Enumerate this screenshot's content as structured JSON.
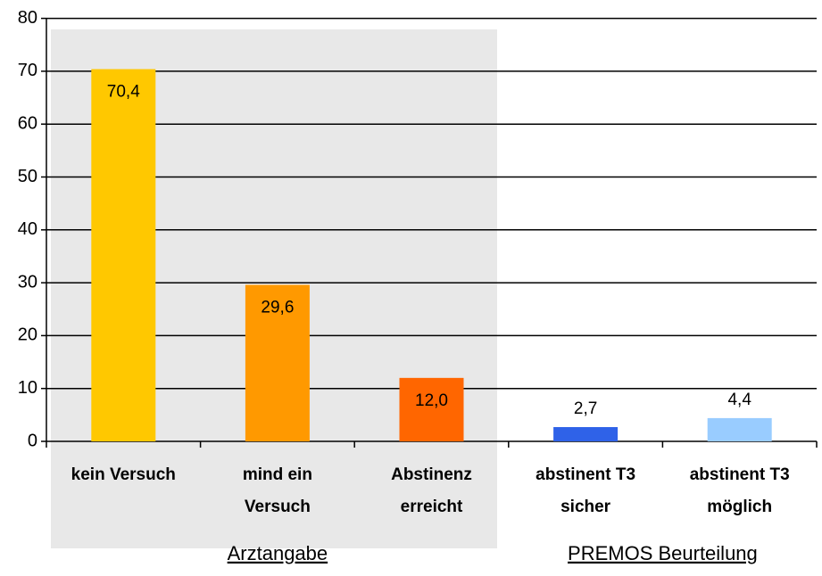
{
  "chart_data": {
    "type": "bar",
    "categories": [
      [
        "kein Versuch"
      ],
      [
        "mind ein",
        "Versuch"
      ],
      [
        "Abstinenz",
        "erreicht"
      ],
      [
        "abstinent T3",
        "sicher"
      ],
      [
        "abstinent T3",
        "möglich"
      ]
    ],
    "values": [
      70.4,
      29.6,
      12.0,
      2.7,
      4.4
    ],
    "value_labels": [
      "70,4",
      "29,6",
      "12,0",
      "2,7",
      "4,4"
    ],
    "colors": [
      "#ffc800",
      "#ff9900",
      "#ff6600",
      "#2f62e8",
      "#99ccff"
    ],
    "group_labels": [
      "Arztangabe",
      "PREMOS Beurteilung"
    ],
    "ylim": [
      0,
      80
    ],
    "yticks": [
      0,
      10,
      20,
      30,
      40,
      50,
      60,
      70,
      80
    ],
    "grid": true
  }
}
